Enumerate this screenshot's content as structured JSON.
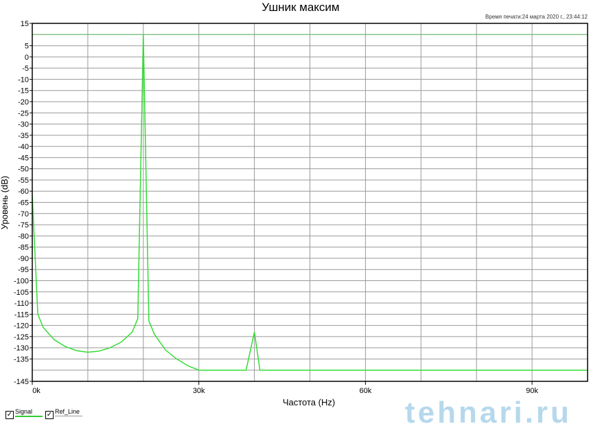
{
  "chart_data": {
    "type": "line",
    "title": "Ушник максим",
    "subtitle": "Время печати:24 марта 2020 г., 23:44:12",
    "xlabel": "Частота (Hz)",
    "ylabel": "Уровень (dB)",
    "xlim": [
      0,
      100000
    ],
    "ylim": [
      -145,
      15
    ],
    "x_ticks": [
      {
        "value": 0,
        "label": "0k"
      },
      {
        "value": 30000,
        "label": "30k"
      },
      {
        "value": 60000,
        "label": "60k"
      },
      {
        "value": 90000,
        "label": "90k"
      }
    ],
    "x_grid_step": 10000,
    "y_ticks": [
      15,
      5,
      0,
      -5,
      -10,
      -15,
      -20,
      -25,
      -30,
      -35,
      -40,
      -45,
      -50,
      -55,
      -60,
      -65,
      -70,
      -75,
      -80,
      -85,
      -90,
      -95,
      -100,
      -105,
      -110,
      -115,
      -120,
      -125,
      -130,
      -135,
      -145
    ],
    "y_grid_step": 5,
    "grid": true,
    "series": [
      {
        "name": "Signal",
        "color": "#33dd33",
        "x": [
          0,
          1000,
          2000,
          4000,
          6000,
          8000,
          10000,
          12000,
          14000,
          16000,
          18000,
          19000,
          20000,
          21000,
          22000,
          24000,
          26000,
          28000,
          30000,
          38500,
          40000,
          41000,
          100000
        ],
        "y": [
          -62,
          -115,
          -121,
          -126.5,
          -129.5,
          -131.3,
          -132,
          -131.5,
          -130,
          -127.5,
          -123,
          -117,
          10,
          -118,
          -124,
          -131,
          -135,
          -138,
          -140,
          -140,
          -123,
          -140,
          -140
        ]
      },
      {
        "name": "Ref_Line",
        "color": "#66bb66",
        "x": [
          0,
          100000
        ],
        "y": [
          10,
          10
        ]
      }
    ],
    "legend": [
      {
        "label": "Signal",
        "checked": true
      },
      {
        "label": "Ref_Line",
        "checked": true
      }
    ],
    "legend_placement": "bottom-left"
  },
  "watermark": "tehnari.ru"
}
